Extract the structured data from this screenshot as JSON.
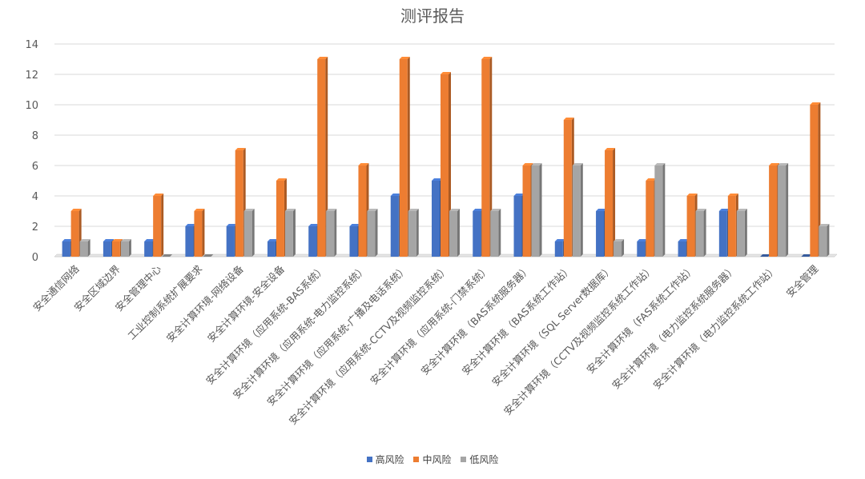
{
  "chart_data": {
    "type": "bar",
    "title": "测评报告",
    "categories": [
      "安全通信网络",
      "安全区域边界",
      "安全管理中心",
      "工业控制系统扩展要求",
      "安全计算环境-网络设备",
      "安全计算环境-安全设备",
      "安全计算环境（应用系统-BAS系统）",
      "安全计算环境（应用系统-电力监控系统）",
      "安全计算环境（应用系统-广播及电话系统）",
      "安全计算环境（应用系统-CCTV及视频监控系统）",
      "安全计算环境（应用系统-门禁系统）",
      "安全计算环境（BAS系统服务器）",
      "安全计算环境（BAS系统工作站）",
      "安全计算环境（SQL Server数据库）",
      "安全计算环境（CCTV及视频监控系统工作站）",
      "安全计算环境（FAS系统工作站）",
      "安全计算环境（电力监控系统服务器）",
      "安全计算环境（电力监控系统工作站）",
      "安全管理"
    ],
    "series": [
      {
        "name": "高风险",
        "color": "#4472C4",
        "values": [
          1,
          1,
          1,
          2,
          2,
          1,
          2,
          2,
          4,
          5,
          3,
          4,
          1,
          3,
          1,
          1,
          3,
          0,
          0
        ]
      },
      {
        "name": "中风险",
        "color": "#ED7D31",
        "values": [
          3,
          1,
          4,
          3,
          7,
          5,
          13,
          6,
          13,
          12,
          13,
          6,
          9,
          7,
          5,
          4,
          4,
          6,
          10
        ]
      },
      {
        "name": "低风险",
        "color": "#A5A5A5",
        "values": [
          1,
          1,
          0,
          0,
          3,
          3,
          3,
          3,
          3,
          3,
          3,
          6,
          6,
          1,
          6,
          3,
          3,
          6,
          2
        ]
      }
    ],
    "ylim": [
      0,
      14
    ],
    "yticks": [
      "0",
      "2",
      "4",
      "6",
      "8",
      "10",
      "12",
      "14"
    ],
    "grid": true,
    "legend_position": "bottom"
  }
}
